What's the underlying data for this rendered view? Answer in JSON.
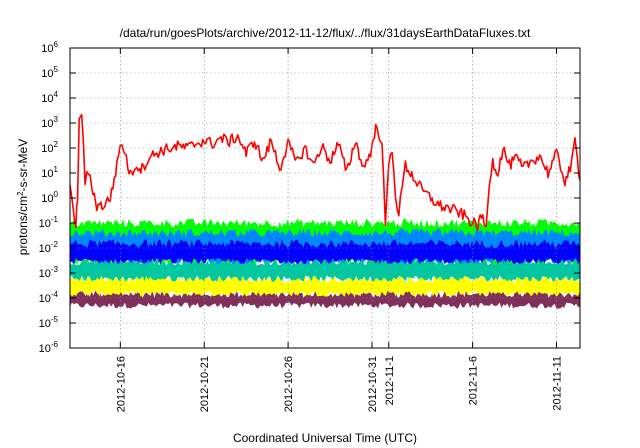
{
  "chart_data": {
    "type": "line",
    "title": "/data/run/goesPlots/archive/2012-11-12/flux/../flux/31daysEarthDataFluxes.txt",
    "xlabel": "Coordinated Universal Time (UTC)",
    "ylabel_main": "protons/cm",
    "ylabel_sup": "2",
    "ylabel_tail": "-s-sr-MeV",
    "xlim": [
      "2012-10-13",
      "2012-11-13"
    ],
    "ylim": [
      1e-06,
      1000000.0
    ],
    "yscale": "log",
    "grid": true,
    "y_ticks": [
      {
        "base": "10",
        "exp": "-6",
        "value": 1e-06
      },
      {
        "base": "10",
        "exp": "-5",
        "value": 1e-05
      },
      {
        "base": "10",
        "exp": "-4",
        "value": 0.0001
      },
      {
        "base": "10",
        "exp": "-3",
        "value": 0.001
      },
      {
        "base": "10",
        "exp": "-2",
        "value": 0.01
      },
      {
        "base": "10",
        "exp": "-1",
        "value": 0.1
      },
      {
        "base": "10",
        "exp": "0",
        "value": 1
      },
      {
        "base": "10",
        "exp": "1",
        "value": 10
      },
      {
        "base": "10",
        "exp": "2",
        "value": 100
      },
      {
        "base": "10",
        "exp": "3",
        "value": 1000
      },
      {
        "base": "10",
        "exp": "4",
        "value": 10000
      },
      {
        "base": "10",
        "exp": "5",
        "value": 100000
      },
      {
        "base": "10",
        "exp": "6",
        "value": 1000000
      }
    ],
    "x_ticks": [
      {
        "label": "2012-10-16",
        "day": 3
      },
      {
        "label": "2012-10-21",
        "day": 8
      },
      {
        "label": "2012-10-26",
        "day": 13
      },
      {
        "label": "2012-10-31",
        "day": 18
      },
      {
        "label": "2012-11-1",
        "day": 19
      },
      {
        "label": "2012-11-6",
        "day": 24
      },
      {
        "label": "2012-11-11",
        "day": 29
      }
    ],
    "series": [
      {
        "color": "#80305a",
        "low": 5e-05,
        "high": 0.00015,
        "x": [
          0,
          30.4
        ],
        "y": [
          8e-05,
          8e-05
        ]
      },
      {
        "color": "#ffff00",
        "low": 0.00015,
        "high": 0.0006,
        "x": [
          0,
          30.4
        ],
        "y": [
          0.0003,
          0.0003
        ]
      },
      {
        "color": "#00c8a0",
        "low": 0.0006,
        "high": 0.003,
        "x": [
          0,
          30.4
        ],
        "y": [
          0.0015,
          0.0015
        ]
      },
      {
        "color": "#00ff00",
        "low": 0.003,
        "high": 0.1,
        "x": [
          0,
          30.4
        ],
        "y": [
          0.02,
          0.02
        ]
      },
      {
        "color": "#0088ff",
        "low": 0.003,
        "high": 0.04,
        "x": [
          0,
          30.4
        ],
        "y": [
          0.012,
          0.012
        ]
      },
      {
        "color": "#0000ff",
        "low": 0.003,
        "high": 0.015,
        "x": [
          0,
          30.4
        ],
        "y": [
          0.007,
          0.007
        ]
      },
      {
        "color": "#ff0000",
        "x": [
          0,
          0.2,
          0.35,
          0.45,
          0.55,
          0.7,
          0.9,
          1.1,
          1.3,
          1.6,
          2.0,
          2.4,
          2.8,
          3.0,
          3.2,
          3.6,
          3.9,
          4.3,
          4.7,
          5.1,
          5.5,
          6.0,
          6.5,
          7.0,
          7.5,
          8.0,
          8.5,
          9.0,
          9.5,
          10.0,
          10.5,
          11.0,
          11.5,
          12.0,
          12.5,
          13.0,
          13.5,
          14.0,
          14.5,
          15.0,
          15.5,
          16.0,
          16.5,
          17.0,
          17.5,
          18.0,
          18.3,
          18.6,
          18.8,
          19.0,
          19.2,
          19.4,
          19.6,
          19.8,
          20.0,
          20.3,
          20.6,
          21.0,
          21.5,
          22.0,
          22.5,
          23.0,
          23.5,
          24.0,
          24.3,
          24.6,
          24.8,
          25.0,
          25.2,
          25.5,
          25.8,
          26.2,
          26.6,
          27.0,
          27.5,
          28.0,
          28.5,
          29.0,
          29.5,
          29.9,
          30.1,
          30.4
        ],
        "y": [
          3,
          0.2,
          0.1,
          1,
          1000,
          3000,
          5,
          10,
          3,
          0.5,
          0.5,
          1,
          20,
          150,
          100,
          8,
          20,
          15,
          40,
          60,
          80,
          100,
          120,
          100,
          150,
          200,
          150,
          250,
          180,
          300,
          60,
          200,
          30,
          200,
          15,
          150,
          25,
          100,
          20,
          120,
          30,
          150,
          10,
          200,
          15,
          100,
          1000,
          100,
          0.1,
          20,
          100,
          1.5,
          0.2,
          3,
          20,
          10,
          5,
          2,
          1,
          0.5,
          0.4,
          0.3,
          0.2,
          0.1,
          0.08,
          0.2,
          0.05,
          5,
          30,
          10,
          100,
          20,
          40,
          15,
          30,
          50,
          10,
          60,
          5,
          20,
          200,
          5
        ]
      }
    ]
  }
}
